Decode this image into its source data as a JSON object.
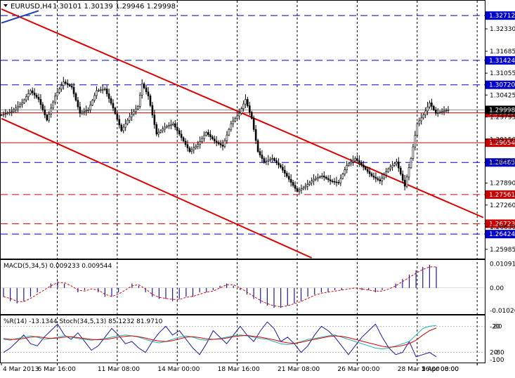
{
  "header": {
    "symbol": "EURUSD,H4",
    "ohlc": "1.30101 1.30139 1.29946 1.29998"
  },
  "chart_data": {
    "type": "candlestick",
    "price_axis": {
      "ylim": [
        1.2574,
        1.3312
      ],
      "ticks": [
        "1.32330",
        "1.31685",
        "1.31055",
        "1.30425",
        "1.29795",
        "1.29150",
        "1.28520",
        "1.27890",
        "1.27260",
        "1.26630",
        "1.25985"
      ]
    },
    "levels": [
      {
        "value": 1.32712,
        "label": "1.32712",
        "color": "#0000cc",
        "dash": true
      },
      {
        "value": 1.31424,
        "label": "1.31424",
        "color": "#0000cc",
        "dash": true
      },
      {
        "value": 1.3072,
        "label": "1.30720",
        "color": "#0000cc",
        "dash": true
      },
      {
        "value": 1.29912,
        "label": "1.29912",
        "color": "#cc0000",
        "dash": false
      },
      {
        "value": 1.29054,
        "label": "1.29054",
        "color": "#cc0000",
        "dash": false
      },
      {
        "value": 1.28485,
        "label": "1.28485",
        "color": "#0000cc",
        "dash": true
      },
      {
        "value": 1.27561,
        "label": "1.27561",
        "color": "#cc0000",
        "dash": true
      },
      {
        "value": 1.26723,
        "label": "1.26723",
        "color": "#cc0000",
        "dash": true
      },
      {
        "value": 1.26424,
        "label": "1.26424",
        "color": "#0000cc",
        "dash": true
      }
    ],
    "current_price": {
      "value": 1.29998,
      "label": "1.29998"
    },
    "time_labels": [
      "4 Mar 2013",
      "6 Mar 16:00",
      "11 Mar 08:00",
      "14 Mar 00:00",
      "18 Mar 16:00",
      "21 Mar 08:00",
      "26 Mar 00:00",
      "28 Mar 16:00",
      "2 Apr 08:00",
      "5 Apr 00:00"
    ],
    "close_path": [
      [
        0,
        1.2985
      ],
      [
        5,
        1.2995
      ],
      [
        10,
        1.302
      ],
      [
        14,
        1.3055
      ],
      [
        18,
        1.303
      ],
      [
        22,
        1.297
      ],
      [
        26,
        1.304
      ],
      [
        30,
        1.308
      ],
      [
        34,
        1.3065
      ],
      [
        38,
        1.299
      ],
      [
        42,
        1.3
      ],
      [
        46,
        1.3055
      ],
      [
        50,
        1.306
      ],
      [
        54,
        1.3005
      ],
      [
        58,
        1.294
      ],
      [
        62,
        1.298
      ],
      [
        66,
        1.301
      ],
      [
        68,
        1.3075
      ],
      [
        71,
        1.304
      ],
      [
        75,
        1.293
      ],
      [
        79,
        1.295
      ],
      [
        83,
        1.296
      ],
      [
        87,
        1.292
      ],
      [
        91,
        1.288
      ],
      [
        95,
        1.29
      ],
      [
        99,
        1.2935
      ],
      [
        103,
        1.291
      ],
      [
        107,
        1.2895
      ],
      [
        111,
        1.296
      ],
      [
        115,
        1.299
      ],
      [
        118,
        1.303
      ],
      [
        121,
        1.2975
      ],
      [
        124,
        1.288
      ],
      [
        127,
        1.285
      ],
      [
        131,
        1.286
      ],
      [
        135,
        1.2835
      ],
      [
        139,
        1.28
      ],
      [
        143,
        1.2765
      ],
      [
        147,
        1.278
      ],
      [
        151,
        1.28
      ],
      [
        155,
        1.281
      ],
      [
        159,
        1.2795
      ],
      [
        163,
        1.279
      ],
      [
        167,
        1.284
      ],
      [
        171,
        1.286
      ],
      [
        175,
        1.2835
      ],
      [
        179,
        1.281
      ],
      [
        183,
        1.2795
      ],
      [
        187,
        1.283
      ],
      [
        191,
        1.285
      ],
      [
        195,
        1.278
      ],
      [
        198,
        1.286
      ],
      [
        201,
        1.296
      ],
      [
        204,
        1.2985
      ],
      [
        207,
        1.302
      ],
      [
        210,
        1.299
      ],
      [
        213,
        1.2995
      ],
      [
        216,
        1.3
      ]
    ],
    "trendlines": [
      {
        "color": "#dd0000",
        "from": [
          0,
          1.329
        ],
        "to": [
          233,
          1.269
        ]
      },
      {
        "color": "#dd0000",
        "from": [
          0,
          1.2975
        ],
        "to": [
          150,
          1.2574
        ]
      },
      {
        "color": "#1f3fb8",
        "from": [
          0,
          1.325
        ],
        "to": [
          18,
          1.3285
        ]
      }
    ],
    "macd": {
      "label": "MACD(5,34,5) 0.009233 0.009544",
      "ylim": [
        -0.0115,
        0.012
      ],
      "ticks": [
        "0.010914",
        "0.00",
        "-0.010266"
      ],
      "hist": [
        -0.004,
        -0.006,
        -0.007,
        -0.006,
        -0.004,
        -0.002,
        0.0,
        0.002,
        0.003,
        0.002,
        0.0,
        -0.002,
        -0.001,
        0.0,
        -0.002,
        -0.004,
        -0.004,
        -0.002,
        0.0,
        0.002,
        0.001,
        -0.002,
        -0.004,
        -0.005,
        -0.005,
        -0.006,
        -0.005,
        -0.004,
        -0.004,
        -0.002,
        -0.002,
        -0.001,
        0.001,
        0.002,
        0.001,
        -0.001,
        -0.003,
        -0.005,
        -0.007,
        -0.008,
        -0.009,
        -0.009,
        -0.008,
        -0.007,
        -0.006,
        -0.004,
        -0.003,
        -0.002,
        -0.002,
        -0.001,
        -0.001,
        0.0,
        0.0,
        -0.001,
        -0.001,
        -0.002,
        -0.001,
        0.0,
        0.002,
        0.004,
        0.006,
        0.008,
        0.0095,
        0.0105,
        0.0095
      ]
    },
    "stoch": {
      "label": "%R(14) -13.1344 Stoch(34,5,13) 85.1232 81.9710",
      "levels": [
        "-20",
        "80",
        "20",
        "-80"
      ],
      "bottom_tick": "-100",
      "ylim": [
        0,
        100
      ],
      "wpr": [
        20,
        30,
        45,
        60,
        40,
        35,
        55,
        70,
        85,
        60,
        50,
        65,
        45,
        25,
        35,
        55,
        75,
        60,
        40,
        45,
        30,
        20,
        45,
        65,
        80,
        60,
        70,
        50,
        30,
        15,
        40,
        70,
        55,
        40,
        60,
        80,
        60,
        45,
        70,
        90,
        75,
        45,
        55,
        40,
        20,
        35,
        60,
        80,
        70,
        55,
        35,
        15,
        35,
        55,
        70,
        85,
        55,
        30,
        15,
        20,
        45,
        10,
        15,
        20,
        10
      ],
      "k": [
        50,
        48,
        52,
        55,
        58,
        55,
        50,
        52,
        55,
        58,
        55,
        52,
        50,
        48,
        50,
        52,
        55,
        58,
        60,
        58,
        55,
        50,
        45,
        42,
        45,
        50,
        55,
        58,
        55,
        50,
        48,
        50,
        52,
        55,
        58,
        60,
        58,
        55,
        52,
        50,
        45,
        40,
        38,
        40,
        45,
        50,
        52,
        55,
        58,
        60,
        55,
        50,
        45,
        40,
        35,
        30,
        28,
        30,
        35,
        40,
        45,
        60,
        75,
        80,
        82
      ],
      "d": [
        52,
        50,
        50,
        52,
        55,
        56,
        54,
        52,
        53,
        55,
        56,
        54,
        52,
        50,
        49,
        50,
        52,
        55,
        57,
        58,
        56,
        53,
        49,
        46,
        45,
        47,
        51,
        55,
        56,
        54,
        51,
        50,
        51,
        53,
        56,
        58,
        59,
        57,
        55,
        52,
        49,
        45,
        42,
        41,
        43,
        47,
        50,
        53,
        56,
        58,
        57,
        54,
        50,
        46,
        42,
        38,
        34,
        32,
        33,
        36,
        40,
        48,
        60,
        70,
        76
      ]
    }
  }
}
